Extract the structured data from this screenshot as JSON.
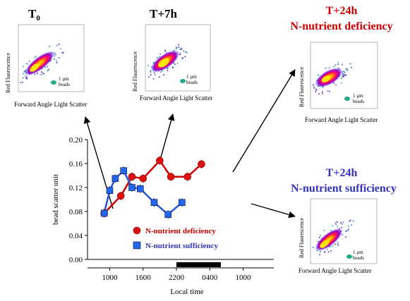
{
  "panels": [
    {
      "title": "T",
      "title_sub": "0",
      "title_color": "#000000",
      "xlabel": "Forward Angle Light Scatter",
      "ylabel": "Red Fluorescence",
      "beads": [
        "1 µm",
        "beads"
      ]
    },
    {
      "title": "T+7h",
      "title_color": "#000000",
      "xlabel": "Forward Angle Light Scatter",
      "ylabel": "Red Fluorescence",
      "beads": [
        "1 µm",
        "beads"
      ]
    },
    {
      "title": "T+24h",
      "subtitle": "N-nutrient deficiency",
      "title_color": "#cc0000",
      "xlabel": "Forward Angle Light Scatter",
      "ylabel": "Red Fluorescence",
      "beads": [
        "1 µm",
        "beads"
      ]
    },
    {
      "title": "T+24h",
      "subtitle": "N-nutrient sufficiency",
      "title_color": "#3333bb",
      "xlabel": "Forward Angle Light Scatter",
      "ylabel": "Red Fluorescence",
      "beads": [
        "1 µm",
        "beads"
      ]
    }
  ],
  "chart_data": {
    "type": "line",
    "title": "",
    "xlabel": "Local time",
    "ylabel": "bead scatter unit",
    "ylim": [
      0.0,
      0.2
    ],
    "yticks": [
      "0.00",
      "0.04",
      "0.08",
      "0.12",
      "0.16",
      "0.20"
    ],
    "xticks": [
      "1000",
      "1600",
      "2200",
      "0400",
      "1000"
    ],
    "xtick_hours": [
      10,
      16,
      22,
      28,
      34
    ],
    "xlim_hours": [
      6,
      38
    ],
    "dark_period_hours": [
      22,
      30
    ],
    "series": [
      {
        "name": "N-nutrient deficiency",
        "color": "#cc0000",
        "marker": "circle",
        "x_hours": [
          9,
          12,
          14,
          16,
          19,
          21,
          24,
          26.5
        ],
        "values": [
          0.077,
          0.106,
          0.138,
          0.135,
          0.165,
          0.138,
          0.138,
          0.159
        ]
      },
      {
        "name": "N-nutrient sufficiency",
        "color": "#2255dd",
        "marker": "square",
        "x_hours": [
          9,
          10,
          11,
          12.5,
          14,
          15.5,
          18,
          20.5,
          23
        ],
        "values": [
          0.077,
          0.115,
          0.135,
          0.148,
          0.12,
          0.118,
          0.095,
          0.075,
          0.095
        ]
      }
    ],
    "legend_position": "bottom-left"
  }
}
